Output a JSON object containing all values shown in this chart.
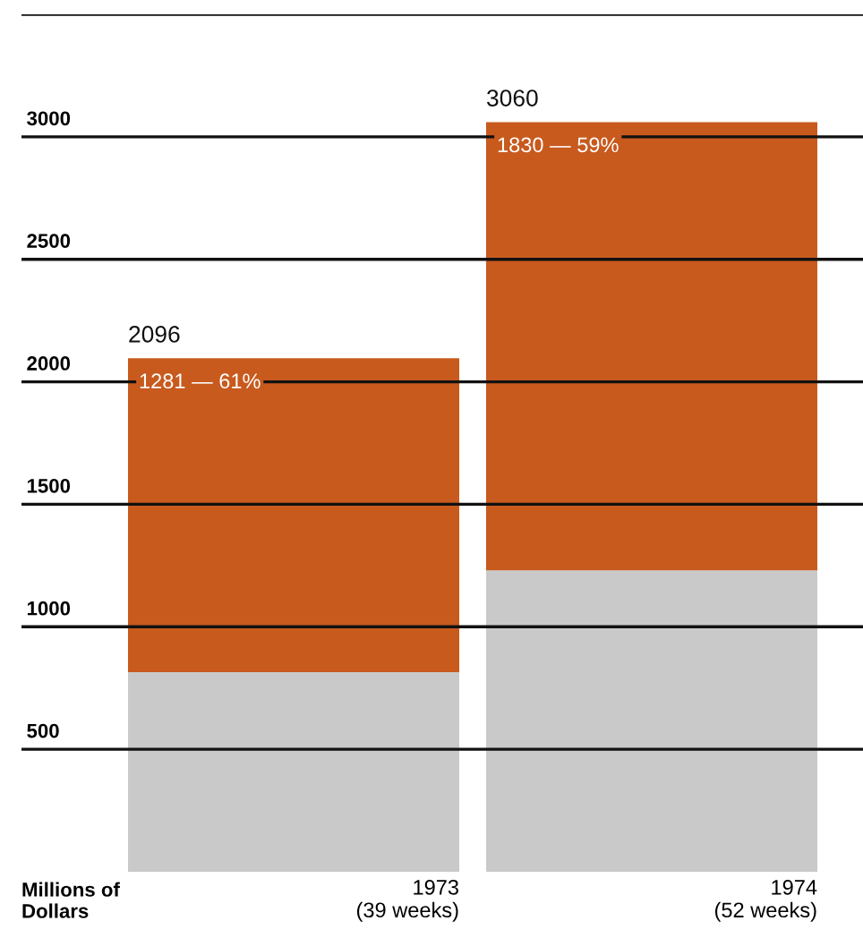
{
  "chart_data": {
    "type": "bar",
    "stacked": true,
    "categories": [
      "1973\n(39 weeks)",
      "1974\n(52 weeks)"
    ],
    "series": [
      {
        "color": "#c9c9c9",
        "values": [
          815,
          1230
        ]
      },
      {
        "color": "#c85a1e",
        "values": [
          1281,
          1830
        ],
        "value_labels": [
          "1281 — 61%",
          "1830 — 59%"
        ]
      }
    ],
    "totals": [
      "2096",
      "3060"
    ],
    "annotations": [
      "Millions of\nDollars"
    ],
    "ylim": [
      0,
      3500
    ],
    "yticks": [
      500,
      1000,
      1500,
      2000,
      2500,
      3000,
      {
        "value": 3500,
        "label": null
      }
    ],
    "grid": "y",
    "legend": false
  }
}
